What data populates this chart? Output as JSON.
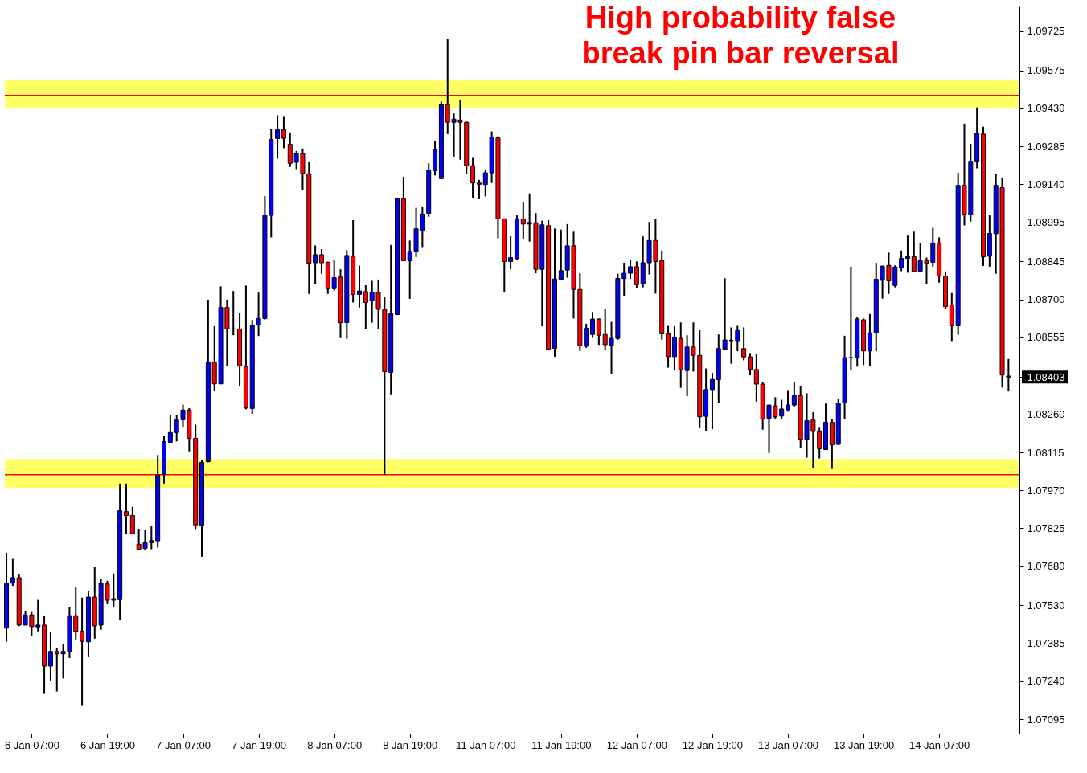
{
  "chart_data": {
    "type": "candlestick",
    "categories": [
      null,
      null,
      null,
      null,
      "6 Jan 07:00",
      null,
      null,
      null,
      null,
      null,
      null,
      null,
      null,
      null,
      null,
      null,
      "6 Jan 19:00",
      null,
      null,
      null,
      null,
      null,
      null,
      null,
      null,
      null,
      null,
      null,
      "7 Jan 07:00",
      null,
      null,
      null,
      null,
      null,
      null,
      null,
      null,
      null,
      null,
      null,
      "7 Jan 19:00",
      null,
      null,
      null,
      null,
      null,
      null,
      null,
      null,
      null,
      null,
      null,
      "8 Jan 07:00",
      null,
      null,
      null,
      null,
      null,
      null,
      null,
      null,
      null,
      null,
      null,
      "8 Jan 19:00",
      null,
      null,
      null,
      null,
      null,
      null,
      null,
      null,
      null,
      null,
      null,
      "11 Jan 07:00",
      null,
      null,
      null,
      null,
      null,
      null,
      null,
      null,
      null,
      null,
      null,
      "11 Jan 19:00",
      null,
      null,
      null,
      null,
      null,
      null,
      null,
      null,
      null,
      null,
      null,
      "12 Jan 07:00",
      null,
      null,
      null,
      null,
      null,
      null,
      null,
      null,
      null,
      null,
      null,
      "12 Jan 19:00",
      null,
      null,
      null,
      null,
      null,
      null,
      null,
      null,
      null,
      null,
      null,
      "13 Jan 07:00",
      null,
      null,
      null,
      null,
      null,
      null,
      null,
      null,
      null,
      null,
      null,
      "13 Jan 19:00",
      null,
      null,
      null,
      null,
      null,
      null,
      null,
      null,
      null,
      null,
      null,
      "14 Jan 07:00",
      null,
      null,
      null,
      null,
      null,
      null,
      null,
      null,
      null,
      null,
      null
    ],
    "ohlc": [
      [
        1.07443,
        1.07731,
        1.07391,
        1.07615
      ],
      [
        1.07615,
        1.07708,
        1.07605,
        1.07636
      ],
      [
        1.07636,
        1.07651,
        1.07451,
        1.07455
      ],
      [
        1.07455,
        1.07508,
        1.07454,
        1.07494
      ],
      [
        1.07494,
        1.07505,
        1.07412,
        1.07449
      ],
      [
        1.07448,
        1.07551,
        1.07431,
        1.07455
      ],
      [
        1.07455,
        1.07491,
        1.07192,
        1.07298
      ],
      [
        1.07298,
        1.07429,
        1.07243,
        1.07354
      ],
      [
        1.07354,
        1.07366,
        1.07201,
        1.07345
      ],
      [
        1.07345,
        1.07382,
        1.07251,
        1.07354
      ],
      [
        1.07354,
        1.07524,
        1.07329,
        1.07491
      ],
      [
        1.07491,
        1.07601,
        1.074,
        1.07431
      ],
      [
        1.07431,
        1.0756,
        1.07149,
        1.07393
      ],
      [
        1.07391,
        1.07586,
        1.07332,
        1.07562
      ],
      [
        1.07562,
        1.07676,
        1.07403,
        1.07452
      ],
      [
        1.07455,
        1.07631,
        1.07437,
        1.07615
      ],
      [
        1.07612,
        1.07624,
        1.07535,
        1.0755
      ],
      [
        1.0755,
        1.07652,
        1.07525,
        1.07556
      ],
      [
        1.07552,
        1.07996,
        1.07476,
        1.07892
      ],
      [
        1.07889,
        1.07996,
        1.07803,
        1.07874
      ],
      [
        1.07874,
        1.07907,
        1.07801,
        1.07804
      ],
      [
        1.07764,
        1.07823,
        1.07743,
        1.07745
      ],
      [
        1.07748,
        1.07817,
        1.0774,
        1.0777
      ],
      [
        1.0777,
        1.07835,
        1.07745,
        1.07778
      ],
      [
        1.07777,
        1.08105,
        1.07751,
        1.08029
      ],
      [
        1.08031,
        1.08178,
        1.07996,
        1.08156
      ],
      [
        1.08154,
        1.08259,
        1.08152,
        1.08191
      ],
      [
        1.08191,
        1.08259,
        1.08157,
        1.08239
      ],
      [
        1.0824,
        1.08298,
        1.0821,
        1.08277
      ],
      [
        1.08277,
        1.08284,
        1.08119,
        1.08169
      ],
      [
        1.08169,
        1.08221,
        1.07822,
        1.07838
      ],
      [
        1.07836,
        1.08087,
        1.07716,
        1.08077
      ],
      [
        1.0808,
        1.08699,
        1.08077,
        1.08461
      ],
      [
        1.08461,
        1.08598,
        1.08351,
        1.08377
      ],
      [
        1.08377,
        1.0875,
        1.08377,
        1.08669
      ],
      [
        1.08669,
        1.08699,
        1.08447,
        1.08587
      ],
      [
        1.08587,
        1.08732,
        1.08563,
        1.08587
      ],
      [
        1.08587,
        1.08648,
        1.0837,
        1.08445
      ],
      [
        1.08443,
        1.08753,
        1.0828,
        1.08285
      ],
      [
        1.08283,
        1.08621,
        1.08263,
        1.086
      ],
      [
        1.08603,
        1.08726,
        1.0856,
        1.08627
      ],
      [
        1.08627,
        1.09095,
        1.08623,
        1.09021
      ],
      [
        1.09021,
        1.09353,
        1.08937,
        1.09311
      ],
      [
        1.09315,
        1.09404,
        1.09238,
        1.09349
      ],
      [
        1.09349,
        1.09401,
        1.09278,
        1.09316
      ],
      [
        1.09293,
        1.09338,
        1.09206,
        1.0922
      ],
      [
        1.09224,
        1.09267,
        1.09198,
        1.09258
      ],
      [
        1.09257,
        1.09277,
        1.09117,
        1.09181
      ],
      [
        1.0918,
        1.09227,
        1.08721,
        1.08838
      ],
      [
        1.0884,
        1.08906,
        1.0876,
        1.08871
      ],
      [
        1.08871,
        1.08892,
        1.08798,
        1.0884
      ],
      [
        1.08842,
        1.08844,
        1.08721,
        1.08741
      ],
      [
        1.08741,
        1.08851,
        1.08733,
        1.08783
      ],
      [
        1.08785,
        1.08815,
        1.08552,
        1.08611
      ],
      [
        1.08611,
        1.08888,
        1.08549,
        1.08868
      ],
      [
        1.08865,
        1.09003,
        1.08688,
        1.08719
      ],
      [
        1.08719,
        1.08829,
        1.08669,
        1.08732
      ],
      [
        1.0873,
        1.08754,
        1.08585,
        1.08688
      ],
      [
        1.08694,
        1.08771,
        1.08611,
        1.08727
      ],
      [
        1.08727,
        1.08776,
        1.08587,
        1.08662
      ],
      [
        1.08661,
        1.08708,
        1.08028,
        1.08424
      ],
      [
        1.08421,
        1.08908,
        1.08337,
        1.08645
      ],
      [
        1.08642,
        1.09089,
        1.0864,
        1.09085
      ],
      [
        1.09085,
        1.09169,
        1.08846,
        1.08848
      ],
      [
        1.08848,
        1.08925,
        1.08702,
        1.08883
      ],
      [
        1.08884,
        1.0905,
        1.08862,
        1.0897
      ],
      [
        1.08965,
        1.09052,
        1.08897,
        1.09026
      ],
      [
        1.09029,
        1.0922,
        1.09016,
        1.09194
      ],
      [
        1.09192,
        1.09305,
        1.09174,
        1.09272
      ],
      [
        1.09162,
        1.09456,
        1.0916,
        1.09445
      ],
      [
        1.09445,
        1.09695,
        1.09332,
        1.09377
      ],
      [
        1.09377,
        1.09411,
        1.09246,
        1.09389
      ],
      [
        1.09386,
        1.09461,
        1.09234,
        1.09377
      ],
      [
        1.09377,
        1.0938,
        1.09179,
        1.09211
      ],
      [
        1.09211,
        1.09241,
        1.09086,
        1.09145
      ],
      [
        1.09145,
        1.09157,
        1.09083,
        1.0914
      ],
      [
        1.09139,
        1.09196,
        1.09094,
        1.09184
      ],
      [
        1.09184,
        1.09342,
        1.09145,
        1.09321
      ],
      [
        1.09317,
        1.09324,
        1.08934,
        1.09008
      ],
      [
        1.09008,
        1.09008,
        1.08726,
        1.08845
      ],
      [
        1.08845,
        1.08941,
        1.08815,
        1.0886
      ],
      [
        1.08856,
        1.09021,
        1.0885,
        1.09008
      ],
      [
        1.09008,
        1.09073,
        1.08929,
        1.08988
      ],
      [
        1.08988,
        1.09105,
        1.08921,
        1.08994
      ],
      [
        1.08993,
        1.0903,
        1.088,
        1.08815
      ],
      [
        1.08815,
        1.09001,
        1.08597,
        1.08985
      ],
      [
        1.08982,
        1.09003,
        1.08506,
        1.08508
      ],
      [
        1.08513,
        1.08971,
        1.08481,
        1.08778
      ],
      [
        1.08776,
        1.08967,
        1.08773,
        1.0881
      ],
      [
        1.08812,
        1.08988,
        1.08783,
        1.08905
      ],
      [
        1.08905,
        1.08959,
        1.08627,
        1.08738
      ],
      [
        1.08738,
        1.088,
        1.08503,
        1.08523
      ],
      [
        1.08521,
        1.08607,
        1.08515,
        1.0859
      ],
      [
        1.08566,
        1.08652,
        1.08553,
        1.08625
      ],
      [
        1.08625,
        1.08627,
        1.08526,
        1.08563
      ],
      [
        1.08566,
        1.08662,
        1.08505,
        1.08527
      ],
      [
        1.08525,
        1.08614,
        1.08414,
        1.08551
      ],
      [
        1.08551,
        1.08798,
        1.08545,
        1.0878
      ],
      [
        1.0878,
        1.0884,
        1.08714,
        1.088
      ],
      [
        1.088,
        1.08852,
        1.08778,
        1.08825
      ],
      [
        1.08825,
        1.08845,
        1.08744,
        1.08756
      ],
      [
        1.08759,
        1.08941,
        1.08746,
        1.0884
      ],
      [
        1.0884,
        1.08996,
        1.08795,
        1.08925
      ],
      [
        1.08925,
        1.09008,
        1.08722,
        1.08845
      ],
      [
        1.08848,
        1.08887,
        1.08546,
        1.08568
      ],
      [
        1.08568,
        1.08599,
        1.08439,
        1.08481
      ],
      [
        1.08481,
        1.08597,
        1.08431,
        1.08555
      ],
      [
        1.08551,
        1.08612,
        1.08362,
        1.08431
      ],
      [
        1.08428,
        1.08563,
        1.0833,
        1.08518
      ],
      [
        1.08518,
        1.08612,
        1.08424,
        1.08486
      ],
      [
        1.08486,
        1.08582,
        1.08208,
        1.08251
      ],
      [
        1.08253,
        1.08436,
        1.08198,
        1.08355
      ],
      [
        1.08355,
        1.08419,
        1.08204,
        1.08394
      ],
      [
        1.08393,
        1.08566,
        1.08303,
        1.08512
      ],
      [
        1.08508,
        1.08781,
        1.08506,
        1.08545
      ],
      [
        1.08543,
        1.08593,
        1.08454,
        1.08543
      ],
      [
        1.08542,
        1.08599,
        1.08502,
        1.08581
      ],
      [
        1.08512,
        1.08593,
        1.08467,
        1.0848
      ],
      [
        1.0848,
        1.08495,
        1.0841,
        1.08432
      ],
      [
        1.08432,
        1.08493,
        1.08309,
        1.08376
      ],
      [
        1.08376,
        1.08385,
        1.08202,
        1.08242
      ],
      [
        1.08245,
        1.08298,
        1.08113,
        1.08296
      ],
      [
        1.08293,
        1.08326,
        1.08244,
        1.08251
      ],
      [
        1.08254,
        1.08316,
        1.08241,
        1.08281
      ],
      [
        1.08278,
        1.08353,
        1.08271,
        1.08296
      ],
      [
        1.08296,
        1.08383,
        1.08288,
        1.08332
      ],
      [
        1.08332,
        1.0837,
        1.08132,
        1.08165
      ],
      [
        1.08165,
        1.08341,
        1.08095,
        1.08236
      ],
      [
        1.08239,
        1.08269,
        1.08055,
        1.08195
      ],
      [
        1.08195,
        1.08209,
        1.08092,
        1.08129
      ],
      [
        1.08126,
        1.08302,
        1.08124,
        1.0823
      ],
      [
        1.0823,
        1.08241,
        1.08052,
        1.08144
      ],
      [
        1.08146,
        1.08319,
        1.08143,
        1.08304
      ],
      [
        1.08304,
        1.08561,
        1.08241,
        1.08477
      ],
      [
        1.08477,
        1.08825,
        1.08432,
        1.08477
      ],
      [
        1.08477,
        1.08631,
        1.08443,
        1.08625
      ],
      [
        1.08622,
        1.08627,
        1.08449,
        1.08503
      ],
      [
        1.08503,
        1.08644,
        1.08446,
        1.08572
      ],
      [
        1.08572,
        1.0884,
        1.08502,
        1.08777
      ],
      [
        1.08773,
        1.08829,
        1.08703,
        1.08827
      ],
      [
        1.0883,
        1.08879,
        1.08721,
        1.08771
      ],
      [
        1.08753,
        1.0883,
        1.08746,
        1.08824
      ],
      [
        1.08821,
        1.08887,
        1.08808,
        1.08857
      ],
      [
        1.08857,
        1.08944,
        1.08802,
        1.08863
      ],
      [
        1.08863,
        1.08959,
        1.08805,
        1.08807
      ],
      [
        1.08808,
        1.08914,
        1.08806,
        1.08848
      ],
      [
        1.08848,
        1.0886,
        1.08758,
        1.08839
      ],
      [
        1.08842,
        1.08974,
        1.08825,
        1.08916
      ],
      [
        1.08916,
        1.08937,
        1.08764,
        1.08789
      ],
      [
        1.08789,
        1.08807,
        1.08665,
        1.08672
      ],
      [
        1.08679,
        1.08724,
        1.08541,
        1.08599
      ],
      [
        1.08599,
        1.09184,
        1.08565,
        1.09136
      ],
      [
        1.09136,
        1.09372,
        1.08983,
        1.09026
      ],
      [
        1.09023,
        1.09295,
        1.08998,
        1.09228
      ],
      [
        1.09228,
        1.09434,
        1.09201,
        1.09335
      ],
      [
        1.09332,
        1.0936,
        1.08828,
        1.08863
      ],
      [
        1.08865,
        1.09021,
        1.08825,
        1.08952
      ],
      [
        1.08951,
        1.09181,
        1.08798,
        1.09136
      ],
      [
        1.09127,
        1.09164,
        1.08363,
        1.08411
      ],
      [
        1.08407,
        1.08472,
        1.08348,
        1.08403
      ]
    ],
    "colors": [
      "#0000ff",
      "#0000ff",
      "#ff0000",
      "#0000ff",
      "#ff0000",
      "#0000ff",
      "#ff0000",
      "#0000ff",
      "#ff0000",
      "#0000ff",
      "#0000ff",
      "#ff0000",
      "#ff0000",
      "#0000ff",
      "#ff0000",
      "#0000ff",
      "#ff0000",
      "#0000ff",
      "#0000ff",
      "#ff0000",
      "#ff0000",
      "#ff0000",
      "#0000ff",
      "#0000ff",
      "#0000ff",
      "#0000ff",
      "#0000ff",
      "#0000ff",
      "#0000ff",
      "#ff0000",
      "#ff0000",
      "#0000ff",
      "#0000ff",
      "#ff0000",
      "#0000ff",
      "#ff0000",
      "#000000",
      "#ff0000",
      "#ff0000",
      "#0000ff",
      "#0000ff",
      "#0000ff",
      "#0000ff",
      "#0000ff",
      "#ff0000",
      "#ff0000",
      "#0000ff",
      "#ff0000",
      "#ff0000",
      "#0000ff",
      "#ff0000",
      "#ff0000",
      "#0000ff",
      "#ff0000",
      "#0000ff",
      "#ff0000",
      "#0000ff",
      "#ff0000",
      "#0000ff",
      "#ff0000",
      "#ff0000",
      "#0000ff",
      "#0000ff",
      "#ff0000",
      "#0000ff",
      "#0000ff",
      "#0000ff",
      "#0000ff",
      "#0000ff",
      "#0000ff",
      "#ff0000",
      "#0000ff",
      "#ff0000",
      "#ff0000",
      "#ff0000",
      "#ff0000",
      "#0000ff",
      "#0000ff",
      "#ff0000",
      "#ff0000",
      "#0000ff",
      "#0000ff",
      "#ff0000",
      "#0000ff",
      "#ff0000",
      "#0000ff",
      "#ff0000",
      "#0000ff",
      "#0000ff",
      "#0000ff",
      "#ff0000",
      "#ff0000",
      "#0000ff",
      "#0000ff",
      "#ff0000",
      "#ff0000",
      "#0000ff",
      "#0000ff",
      "#0000ff",
      "#0000ff",
      "#ff0000",
      "#0000ff",
      "#0000ff",
      "#ff0000",
      "#ff0000",
      "#ff0000",
      "#0000ff",
      "#ff0000",
      "#0000ff",
      "#ff0000",
      "#ff0000",
      "#0000ff",
      "#0000ff",
      "#0000ff",
      "#0000ff",
      "#000000",
      "#0000ff",
      "#ff0000",
      "#ff0000",
      "#ff0000",
      "#ff0000",
      "#0000ff",
      "#ff0000",
      "#0000ff",
      "#0000ff",
      "#0000ff",
      "#ff0000",
      "#0000ff",
      "#ff0000",
      "#ff0000",
      "#0000ff",
      "#ff0000",
      "#0000ff",
      "#0000ff",
      "#000000",
      "#0000ff",
      "#ff0000",
      "#0000ff",
      "#0000ff",
      "#0000ff",
      "#ff0000",
      "#0000ff",
      "#0000ff",
      "#0000ff",
      "#ff0000",
      "#0000ff",
      "#ff0000",
      "#0000ff",
      "#ff0000",
      "#ff0000",
      "#ff0000",
      "#0000ff",
      "#ff0000",
      "#0000ff",
      "#0000ff",
      "#ff0000",
      "#0000ff",
      "#0000ff",
      "#ff0000",
      "#ff0000"
    ],
    "ylim": [
      1.0704,
      1.0982
    ],
    "yticks": [
      1.07095,
      {
        "value": 1.0724,
        "label": "1.07240"
      },
      1.07385,
      {
        "value": 1.0753,
        "label": "1.07530"
      },
      {
        "value": 1.0768,
        "label": "1.07680"
      },
      1.07825,
      {
        "value": 1.0797,
        "label": "1.07970"
      },
      1.08115,
      {
        "value": 1.0826,
        "label": "1.08260"
      },
      1.08403,
      1.08555,
      {
        "value": 1.087,
        "label": "1.08700"
      },
      1.08845,
      1.08995,
      {
        "value": 1.0914,
        "label": "1.09140"
      },
      1.09285,
      {
        "value": 1.0943,
        "label": "1.09430"
      },
      1.09575,
      1.09725
    ],
    "ref_lines": [
      {
        "axis": "y",
        "value": 1.0948,
        "color": "#ff0000"
      },
      {
        "axis": "y",
        "value": 1.0803,
        "color": "#ff0000"
      }
    ],
    "bands": [
      {
        "axis": "y",
        "from": 1.0943,
        "to": 1.0954,
        "color": "#ffff66"
      },
      {
        "axis": "y",
        "from": 1.0798,
        "to": 1.0809,
        "color": "#ffff66"
      }
    ],
    "annotations": [
      "High probability false\nbreak pin bar reversal"
    ]
  }
}
